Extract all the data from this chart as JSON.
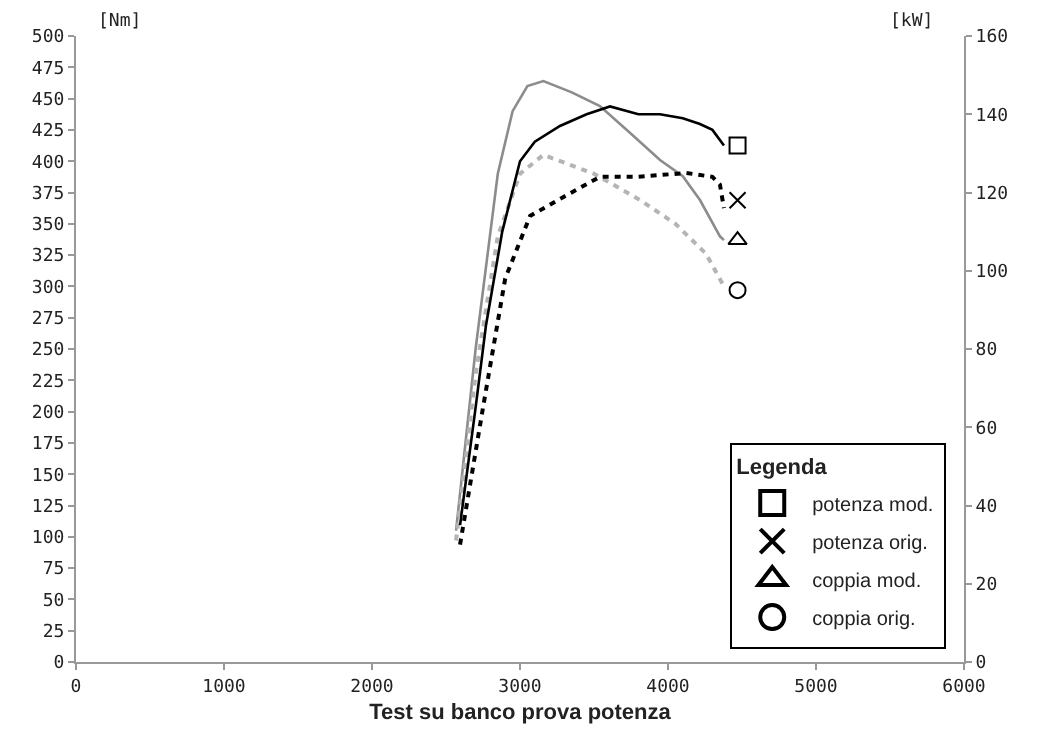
{
  "chart_data": {
    "type": "line",
    "title": "Test su banco prova potenza",
    "ylabel": "[Nm]",
    "y2label": "[kW]",
    "legend_title": "Legenda",
    "xlim": [
      0,
      6000
    ],
    "xticks": [
      0,
      1000,
      2000,
      3000,
      4000,
      5000,
      6000
    ],
    "ylim": [
      0,
      500
    ],
    "yticks": [
      0,
      25,
      50,
      75,
      100,
      125,
      150,
      175,
      200,
      225,
      250,
      275,
      300,
      325,
      350,
      375,
      400,
      425,
      450,
      475,
      500
    ],
    "y2lim": [
      0,
      160
    ],
    "y2ticks": [
      0,
      20,
      40,
      60,
      80,
      100,
      120,
      140,
      160
    ],
    "grid": false,
    "legend": "bottom right",
    "series": [
      {
        "axis": "y2",
        "color": "#000000",
        "line_style": "solid",
        "x": [
          2595,
          2700,
          2770,
          2880,
          3000,
          3100,
          3270,
          3450,
          3608,
          3800,
          3946,
          4100,
          4216,
          4300,
          4378
        ],
        "values": [
          35,
          65,
          86,
          110,
          128,
          133,
          137,
          140,
          142,
          140,
          140,
          139,
          137.5,
          136,
          132
        ]
      },
      {
        "axis": "y2",
        "color": "#000000",
        "line_style": "dotted",
        "x": [
          2595,
          2750,
          2900,
          3068,
          3300,
          3540,
          3800,
          4122,
          4300,
          4351,
          4378
        ],
        "values": [
          30,
          65,
          98,
          114,
          119,
          124,
          124,
          125,
          124,
          122,
          116
        ]
      },
      {
        "color": "#8c8c8c",
        "line_style": "solid",
        "x": [
          2568,
          2700,
          2850,
          2950,
          3050,
          3158,
          3350,
          3540,
          3750,
          3946,
          4100,
          4216,
          4351,
          4378
        ],
        "values": [
          105,
          250,
          390,
          440,
          460,
          464,
          455,
          444,
          422,
          401,
          388,
          369,
          340,
          337
        ]
      },
      {
        "color": "#b4b4b4",
        "line_style": "dotted",
        "x": [
          2568,
          2700,
          2850,
          3000,
          3158,
          3500,
          3811,
          4050,
          4257,
          4378
        ],
        "values": [
          97,
          230,
          340,
          390,
          405,
          390,
          369,
          350,
          326,
          300
        ]
      },
      {
        "type": "scatter",
        "name": "potenza mod.",
        "axis": "y2",
        "color": "#000000",
        "marker": "square",
        "x": [
          4470
        ],
        "values": [
          132
        ]
      },
      {
        "type": "scatter",
        "name": "potenza orig.",
        "axis": "y2",
        "color": "#000000",
        "marker": "cross",
        "x": [
          4470
        ],
        "values": [
          118
        ]
      },
      {
        "type": "scatter",
        "name": "coppia mod.",
        "color": "#000000",
        "marker": "triangle",
        "x": [
          4470
        ],
        "values": [
          337
        ]
      },
      {
        "type": "scatter",
        "name": "coppia orig.",
        "color": "#000000",
        "marker": "circle",
        "x": [
          4470
        ],
        "values": [
          297
        ]
      }
    ]
  }
}
